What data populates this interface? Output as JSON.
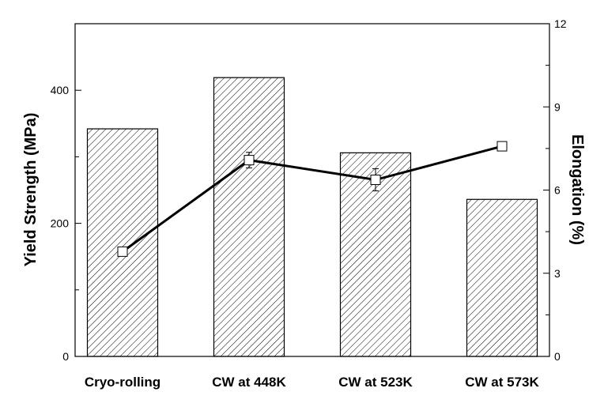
{
  "chart_data": {
    "type": "bar",
    "categories": [
      "Cryo-rolling",
      "CW at 448K",
      "CW at 523K",
      "CW at 573K"
    ],
    "ylabel": "Yield Strength (MPa)",
    "y2label": "Elongation (%)",
    "ylim": [
      0,
      500
    ],
    "y2lim": [
      0,
      12
    ],
    "yticks": [
      0,
      200,
      400
    ],
    "y2ticks": [
      0,
      3,
      6,
      9,
      12
    ],
    "grid": false,
    "bar_pattern": "diagonal-hatch",
    "series": [
      {
        "axis": "left",
        "kind": "bar",
        "values": [
          342,
          419,
          306,
          236
        ]
      },
      {
        "axis": "right",
        "kind": "line",
        "marker": "open-square",
        "values": [
          3.78,
          7.08,
          6.37,
          7.58
        ],
        "errors": [
          0.05,
          0.28,
          0.4,
          0.05
        ]
      }
    ]
  }
}
